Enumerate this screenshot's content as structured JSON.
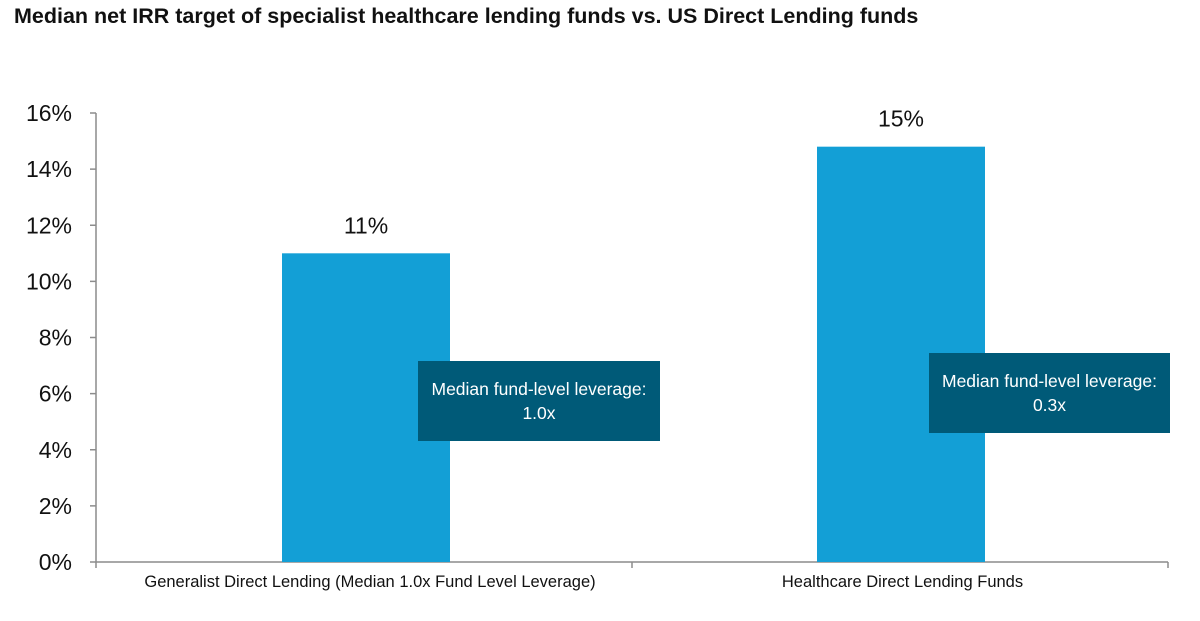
{
  "chart_data": {
    "type": "bar",
    "title": "Median net IRR target of specialist healthcare lending funds vs. US Direct Lending funds",
    "categories": [
      "Generalist Direct Lending (Median 1.0x Fund Level Leverage)",
      "Healthcare Direct Lending Funds"
    ],
    "values": [
      11,
      14.8
    ],
    "data_labels": [
      "11%",
      "15%"
    ],
    "ylim": [
      0,
      16
    ],
    "yticks": [
      0,
      2,
      4,
      6,
      8,
      10,
      12,
      14,
      16
    ],
    "ytick_labels": [
      "0%",
      "2%",
      "4%",
      "6%",
      "8%",
      "10%",
      "12%",
      "14%",
      "16%"
    ],
    "xlabel": "",
    "ylabel": "",
    "grid": false,
    "bar_color": "#139fd6",
    "annotations": [
      {
        "text": "Median fund-level leverage: 1.0x",
        "category": 0,
        "y": 4.3,
        "color": "#005a78"
      },
      {
        "text": "Median fund-level leverage: 0.3x",
        "category": 1,
        "y": 4.6,
        "color": "#005a78"
      }
    ]
  }
}
